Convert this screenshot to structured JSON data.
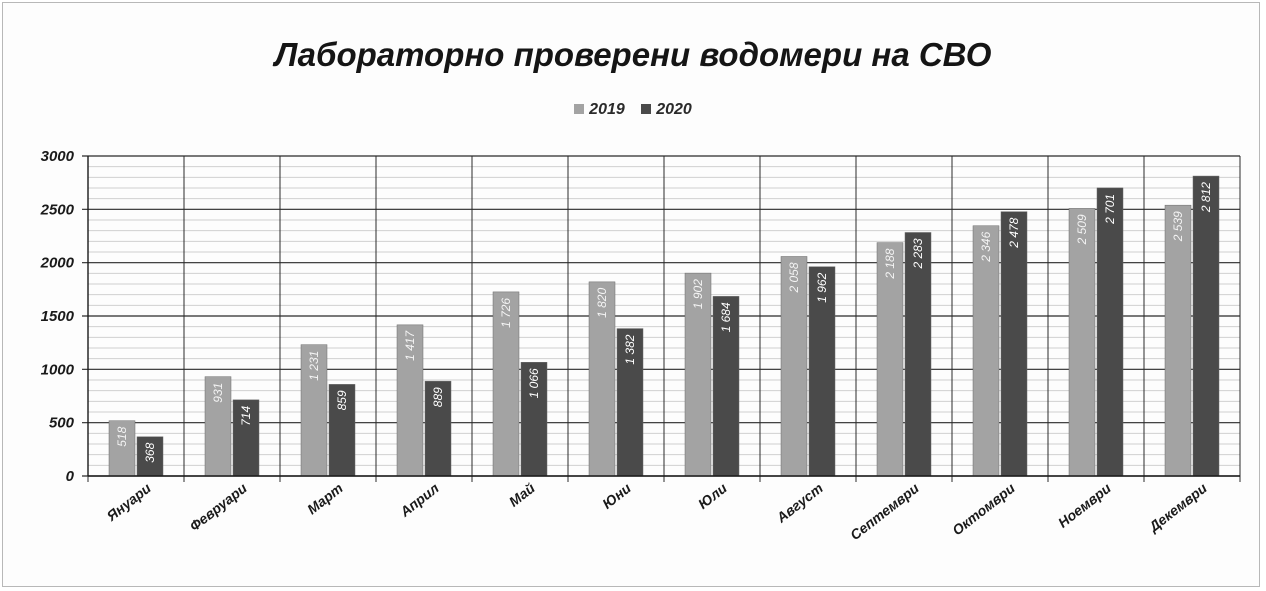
{
  "chart_data": {
    "type": "bar",
    "title": "Лабораторно проверени водомери на СВО",
    "xlabel": "",
    "ylabel": "",
    "categories": [
      "Януари",
      "Февруари",
      "Март",
      "Април",
      "Май",
      "Юни",
      "Юли",
      "Август",
      "Септември",
      "Октомври",
      "Ноември",
      "Декември"
    ],
    "series": [
      {
        "name": "2019",
        "color": "#a3a3a3",
        "values": [
          518,
          931,
          1231,
          1417,
          1726,
          1820,
          1902,
          2058,
          2188,
          2346,
          2509,
          2539
        ],
        "labels": [
          "518",
          "931",
          "1 231",
          "1 417",
          "1 726",
          "1 820",
          "1 902",
          "2 058",
          "2 188",
          "2 346",
          "2 509",
          "2 539"
        ]
      },
      {
        "name": "2020",
        "color": "#4a4a4a",
        "values": [
          368,
          714,
          859,
          889,
          1066,
          1382,
          1684,
          1962,
          2283,
          2478,
          2701,
          2812
        ],
        "labels": [
          "368",
          "714",
          "859",
          "889",
          "1 066",
          "1 382",
          "1 684",
          "1 962",
          "2 283",
          "2 478",
          "2 701",
          "2 812"
        ]
      }
    ],
    "ylim": [
      0,
      3000
    ],
    "yticks": [
      0,
      500,
      1000,
      1500,
      2000,
      2500,
      3000
    ],
    "ytick_labels": [
      "0",
      "500",
      "1000",
      "1500",
      "2000",
      "2500",
      "3000"
    ],
    "minor_step": 100,
    "grid": true,
    "legend_position": "top"
  }
}
